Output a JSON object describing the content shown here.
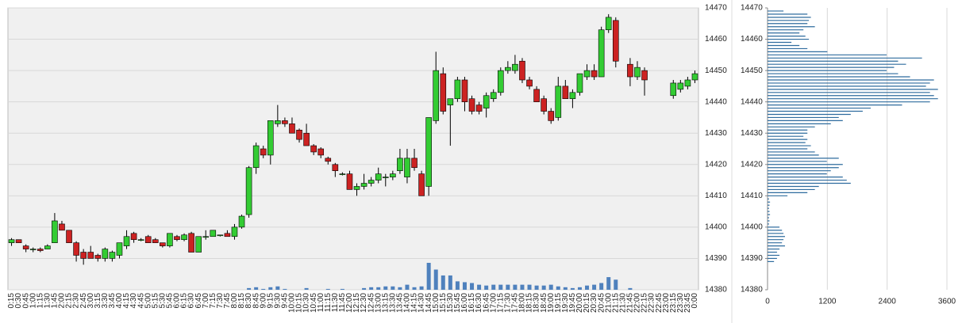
{
  "chart_data": [
    {
      "type": "candlestick",
      "categories": [
        "0:15",
        "0:30",
        "0:45",
        "1:00",
        "1:15",
        "1:30",
        "1:45",
        "2:00",
        "2:15",
        "2:30",
        "2:45",
        "3:00",
        "3:15",
        "3:30",
        "3:45",
        "4:00",
        "4:15",
        "4:30",
        "4:45",
        "5:00",
        "5:15",
        "5:30",
        "5:45",
        "6:00",
        "6:15",
        "6:30",
        "6:45",
        "7:00",
        "7:15",
        "7:30",
        "7:45",
        "8:00",
        "8:15",
        "8:30",
        "8:45",
        "9:00",
        "9:15",
        "9:30",
        "9:45",
        "10:00",
        "10:15",
        "10:30",
        "10:45",
        "11:00",
        "11:15",
        "11:30",
        "11:45",
        "12:00",
        "12:15",
        "12:30",
        "12:45",
        "13:00",
        "13:15",
        "13:30",
        "13:45",
        "14:00",
        "14:15",
        "14:30",
        "14:45",
        "15:00",
        "15:15",
        "15:30",
        "15:45",
        "16:00",
        "16:15",
        "16:30",
        "16:45",
        "17:00",
        "17:15",
        "17:30",
        "17:45",
        "18:00",
        "18:15",
        "18:30",
        "18:45",
        "19:00",
        "19:15",
        "19:30",
        "19:45",
        "20:00",
        "20:15",
        "20:30",
        "20:45",
        "21:00",
        "21:15",
        "21:30",
        "21:45",
        "22:00",
        "22:15",
        "22:30",
        "22:45",
        "23:00",
        "23:15",
        "23:30",
        "23:45",
        "0:00"
      ],
      "open": [
        14395,
        14396,
        14394,
        14393,
        14393,
        14393,
        14395,
        14401,
        14399,
        14395,
        14392,
        14392,
        14391,
        14390,
        14390,
        14391,
        14394,
        14398,
        14396,
        14397,
        14396,
        14395,
        14394,
        14397,
        14396,
        14398,
        14392,
        14397,
        14397,
        14397.5,
        14398,
        14397,
        14400,
        14404,
        14419,
        14425,
        14423,
        14433,
        14434,
        14433,
        14431,
        14430,
        14426,
        14425,
        14422,
        14420,
        14417,
        14417,
        14412,
        14413,
        14414,
        14415,
        14416,
        14416,
        14418,
        14416,
        14422,
        14417,
        14413,
        14434,
        14449,
        14439,
        14441,
        14447,
        14441,
        14439,
        14438,
        14441,
        14443,
        14450,
        14450,
        14453,
        14447,
        14444,
        14441,
        14437,
        14435,
        14445,
        14441,
        14443,
        14448,
        14450,
        14448,
        14463,
        14466,
        null,
        14452,
        14448,
        14450,
        null,
        null,
        null,
        14442,
        14444,
        14445,
        14447
      ],
      "high": [
        14396.5,
        14396,
        14394.5,
        14393.5,
        14393.5,
        14394.5,
        14404.5,
        14402,
        14399,
        14395.5,
        14393,
        14394,
        14391.5,
        14393.5,
        14392.5,
        14395,
        14399,
        14398.5,
        14396.5,
        14397.5,
        14396.5,
        14395,
        14398,
        14397.5,
        14398,
        14398.5,
        14397,
        14399,
        14399,
        14397.5,
        14399,
        14401,
        14404,
        14419.5,
        14427,
        14426,
        14434,
        14439,
        14435,
        14435,
        14431.5,
        14433,
        14426.5,
        14425.5,
        14422.5,
        14420.5,
        14417.5,
        14418,
        14414,
        14417,
        14416,
        14419,
        14417,
        14418,
        14425,
        14425,
        14425,
        14418,
        14435,
        14456,
        14451,
        14441,
        14448,
        14448,
        14442,
        14440,
        14443,
        14444,
        14451,
        14453,
        14455,
        14454,
        14448,
        14445,
        14442,
        14438,
        14448,
        14447,
        14444,
        14449,
        14452,
        14452,
        14464,
        14468,
        14467,
        null,
        14454,
        14453,
        14451,
        null,
        null,
        null,
        14447,
        14447,
        14448,
        14450
      ],
      "low": [
        14394,
        14395,
        14392,
        14392,
        14392,
        14393,
        14395,
        14399,
        14395,
        14389,
        14388,
        14390,
        14389,
        14389,
        14389,
        14390,
        14393,
        14395,
        14395.5,
        14395,
        14395,
        14393.5,
        14393.5,
        14395.5,
        14395.5,
        14392,
        14392,
        14396,
        14397,
        14397,
        14397,
        14396,
        14399.5,
        14403,
        14417,
        14422,
        14420,
        14432,
        14432,
        14430,
        14427,
        14426,
        14423,
        14422,
        14420,
        14416,
        14416.5,
        14412,
        14410,
        14412,
        14413,
        14414,
        14413,
        14415,
        14417,
        14414,
        14418,
        14410,
        14410,
        14433,
        14436,
        14426,
        14440,
        14437,
        14436,
        14436,
        14435,
        14440,
        14442,
        14449,
        14449,
        14446,
        14444,
        14440,
        14436,
        14433,
        14434,
        14441,
        14438,
        14442,
        14447,
        14447,
        14448,
        14462,
        14451,
        null,
        14445,
        14447,
        14442,
        null,
        null,
        null,
        14441,
        14443,
        14444,
        14446
      ],
      "close": [
        14396,
        14395,
        14393,
        14393,
        14392.5,
        14394,
        14402,
        14399,
        14395,
        14391,
        14390,
        14390,
        14390,
        14393,
        14392,
        14395,
        14397,
        14396,
        14396,
        14395,
        14395,
        14394,
        14398,
        14396,
        14397.5,
        14392,
        14397,
        14397,
        14399,
        14397.5,
        14397,
        14400,
        14403.5,
        14419,
        14426,
        14423,
        14434,
        14434,
        14433,
        14430,
        14428,
        14426,
        14424,
        14423,
        14421,
        14418,
        14417,
        14412,
        14413,
        14414,
        14415,
        14417,
        14416,
        14417,
        14422,
        14422,
        14419,
        14410,
        14435,
        14450,
        14437,
        14441,
        14447,
        14440,
        14437,
        14437,
        14442,
        14443,
        14450,
        14451,
        14452,
        14447,
        14445,
        14440,
        14437,
        14434,
        14445,
        14441,
        14443,
        14449,
        14450,
        14448,
        14463,
        14467,
        14453,
        null,
        14448,
        14451,
        14447,
        null,
        null,
        null,
        14446,
        14446,
        14447,
        14449
      ],
      "volume": [
        null,
        null,
        null,
        null,
        null,
        null,
        null,
        null,
        null,
        null,
        null,
        null,
        null,
        null,
        null,
        null,
        null,
        null,
        null,
        null,
        null,
        null,
        null,
        null,
        null,
        null,
        null,
        null,
        null,
        null,
        null,
        null,
        null,
        2,
        3,
        1,
        3,
        4,
        1,
        null,
        null,
        2,
        null,
        null,
        1,
        null,
        1,
        null,
        null,
        2,
        3,
        3,
        4,
        4,
        3,
        6,
        3,
        4,
        32,
        24,
        17,
        17,
        10,
        9,
        8,
        6,
        5,
        6,
        6,
        6,
        6,
        6,
        6,
        5,
        5,
        6,
        4,
        3,
        2,
        3,
        5,
        6,
        8,
        15,
        12,
        null,
        2,
        null,
        null,
        null,
        null,
        null,
        null,
        null,
        null,
        null
      ],
      "up_color": "#33cc33",
      "down_color": "#cc2222",
      "volume_color": "#4f81bd",
      "ylim": [
        14380,
        14470
      ],
      "yticks": [
        14380,
        14390,
        14400,
        14410,
        14420,
        14430,
        14440,
        14450,
        14460,
        14470
      ],
      "grid": true
    },
    {
      "type": "profile",
      "levels": [
        14389,
        14390,
        14391,
        14392,
        14393,
        14394,
        14395,
        14396,
        14397,
        14398,
        14399,
        14400,
        14401,
        14402,
        14403,
        14404,
        14405,
        14406,
        14407,
        14408,
        14409,
        14410,
        14411,
        14412,
        14413,
        14414,
        14415,
        14416,
        14417,
        14418,
        14419,
        14420,
        14421,
        14422,
        14423,
        14424,
        14425,
        14426,
        14427,
        14428,
        14429,
        14430,
        14431,
        14432,
        14433,
        14434,
        14435,
        14436,
        14437,
        14438,
        14439,
        14440,
        14441,
        14442,
        14443,
        14444,
        14445,
        14446,
        14447,
        14448,
        14449,
        14450,
        14451,
        14452,
        14453,
        14454,
        14455,
        14456,
        14457,
        14458,
        14459,
        14460,
        14461,
        14462,
        14463,
        14464,
        14465,
        14466,
        14467,
        14468,
        14469
      ],
      "values": [
        130,
        190,
        240,
        190,
        240,
        350,
        290,
        320,
        350,
        320,
        290,
        240,
        30,
        40,
        30,
        50,
        40,
        30,
        40,
        50,
        30,
        400,
        800,
        950,
        1030,
        1670,
        1590,
        1510,
        1190,
        1270,
        1430,
        1510,
        1190,
        1430,
        1030,
        950,
        800,
        870,
        760,
        800,
        720,
        800,
        800,
        950,
        1270,
        1510,
        1430,
        1670,
        1910,
        2070,
        2700,
        3260,
        3420,
        3340,
        3260,
        3420,
        3180,
        3260,
        3340,
        2860,
        2620,
        2390,
        2540,
        2780,
        2620,
        3100,
        2390,
        1200,
        800,
        640,
        480,
        830,
        760,
        640,
        720,
        950,
        800,
        830,
        870,
        800,
        320
      ],
      "color": "#2e6b9e",
      "xlim": [
        0,
        3600
      ],
      "xticks": [
        0,
        1200,
        2400,
        3600
      ],
      "ylim": [
        14380,
        14470
      ],
      "yticks": [
        14380,
        14390,
        14400,
        14410,
        14420,
        14430,
        14440,
        14450,
        14460,
        14470
      ],
      "grid": true
    }
  ]
}
